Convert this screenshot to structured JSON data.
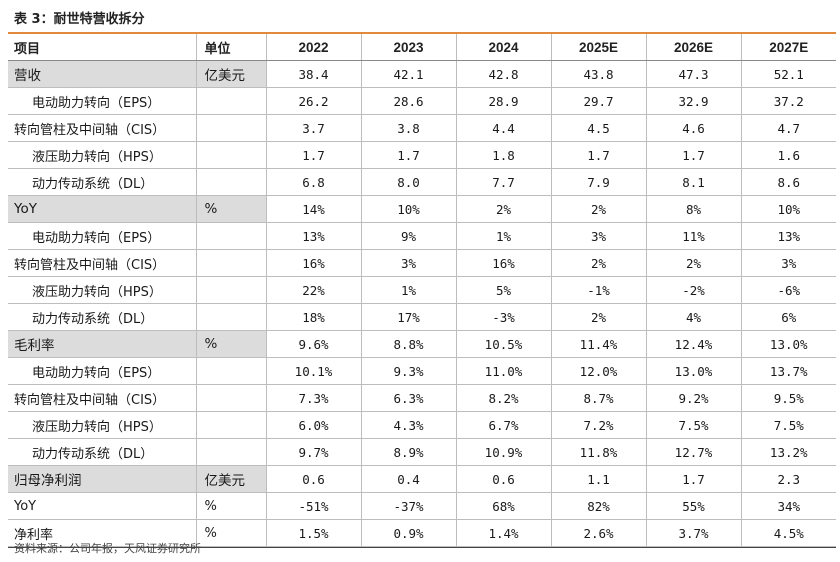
{
  "title": "表 3：耐世特营收拆分",
  "header": [
    "项目",
    "单位",
    "2022",
    "2023",
    "2024",
    "2025E",
    "2026E",
    "2027E"
  ],
  "rows": [
    {
      "label": "营收",
      "unit": "亿美元",
      "section": true,
      "sub": false,
      "values": [
        "38.4",
        "42.1",
        "42.8",
        "43.8",
        "47.3",
        "52.1"
      ]
    },
    {
      "label": "电动助力转向（EPS）",
      "unit": "",
      "section": false,
      "sub": true,
      "values": [
        "26.2",
        "28.6",
        "28.9",
        "29.7",
        "32.9",
        "37.2"
      ]
    },
    {
      "label": "转向管柱及中间轴（CIS）",
      "unit": "",
      "section": false,
      "sub": false,
      "values": [
        "3.7",
        "3.8",
        "4.4",
        "4.5",
        "4.6",
        "4.7"
      ]
    },
    {
      "label": "液压助力转向（HPS）",
      "unit": "",
      "section": false,
      "sub": true,
      "values": [
        "1.7",
        "1.7",
        "1.8",
        "1.7",
        "1.7",
        "1.6"
      ]
    },
    {
      "label": "动力传动系统（DL）",
      "unit": "",
      "section": false,
      "sub": true,
      "values": [
        "6.8",
        "8.0",
        "7.7",
        "7.9",
        "8.1",
        "8.6"
      ]
    },
    {
      "label": "YoY",
      "unit": "%",
      "section": true,
      "sub": false,
      "values": [
        "14%",
        "10%",
        "2%",
        "2%",
        "8%",
        "10%"
      ]
    },
    {
      "label": "电动助力转向（EPS）",
      "unit": "",
      "section": false,
      "sub": true,
      "values": [
        "13%",
        "9%",
        "1%",
        "3%",
        "11%",
        "13%"
      ]
    },
    {
      "label": "转向管柱及中间轴（CIS）",
      "unit": "",
      "section": false,
      "sub": false,
      "values": [
        "16%",
        "3%",
        "16%",
        "2%",
        "2%",
        "3%"
      ]
    },
    {
      "label": "液压助力转向（HPS）",
      "unit": "",
      "section": false,
      "sub": true,
      "values": [
        "22%",
        "1%",
        "5%",
        "-1%",
        "-2%",
        "-6%"
      ]
    },
    {
      "label": "动力传动系统（DL）",
      "unit": "",
      "section": false,
      "sub": true,
      "values": [
        "18%",
        "17%",
        "-3%",
        "2%",
        "4%",
        "6%"
      ]
    },
    {
      "label": "毛利率",
      "unit": "%",
      "section": true,
      "sub": false,
      "values": [
        "9.6%",
        "8.8%",
        "10.5%",
        "11.4%",
        "12.4%",
        "13.0%"
      ]
    },
    {
      "label": "电动助力转向（EPS）",
      "unit": "",
      "section": false,
      "sub": true,
      "values": [
        "10.1%",
        "9.3%",
        "11.0%",
        "12.0%",
        "13.0%",
        "13.7%"
      ]
    },
    {
      "label": "转向管柱及中间轴（CIS）",
      "unit": "",
      "section": false,
      "sub": false,
      "values": [
        "7.3%",
        "6.3%",
        "8.2%",
        "8.7%",
        "9.2%",
        "9.5%"
      ]
    },
    {
      "label": "液压助力转向（HPS）",
      "unit": "",
      "section": false,
      "sub": true,
      "values": [
        "6.0%",
        "4.3%",
        "6.7%",
        "7.2%",
        "7.5%",
        "7.5%"
      ]
    },
    {
      "label": "动力传动系统（DL）",
      "unit": "",
      "section": false,
      "sub": true,
      "values": [
        "9.7%",
        "8.9%",
        "10.9%",
        "11.8%",
        "12.7%",
        "13.2%"
      ]
    },
    {
      "label": "归母净利润",
      "unit": "亿美元",
      "section": true,
      "sub": false,
      "values": [
        "0.6",
        "0.4",
        "0.6",
        "1.1",
        "1.7",
        "2.3"
      ]
    },
    {
      "label": "YoY",
      "unit": "%",
      "section": false,
      "sub": false,
      "values": [
        "-51%",
        "-37%",
        "68%",
        "82%",
        "55%",
        "34%"
      ]
    },
    {
      "label": "净利率",
      "unit": "%",
      "section": false,
      "sub": false,
      "values": [
        "1.5%",
        "0.9%",
        "1.4%",
        "2.6%",
        "3.7%",
        "4.5%"
      ]
    }
  ],
  "source": "资料来源：公司年报，天风证券研究所",
  "colors": {
    "accent_rule": "#e0893a",
    "section_bg": "#dcdcdc"
  }
}
